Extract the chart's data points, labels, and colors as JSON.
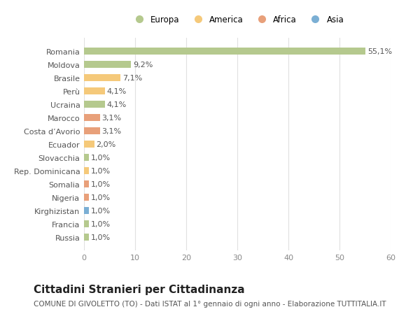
{
  "categories": [
    "Russia",
    "Francia",
    "Kirghizistan",
    "Nigeria",
    "Somalia",
    "Rep. Dominicana",
    "Slovacchia",
    "Ecuador",
    "Costa d’Avorio",
    "Marocco",
    "Ucraina",
    "Perù",
    "Brasile",
    "Moldova",
    "Romania"
  ],
  "values": [
    1.0,
    1.0,
    1.0,
    1.0,
    1.0,
    1.0,
    1.0,
    2.0,
    3.1,
    3.1,
    4.1,
    4.1,
    7.1,
    9.2,
    55.1
  ],
  "labels": [
    "1,0%",
    "1,0%",
    "1,0%",
    "1,0%",
    "1,0%",
    "1,0%",
    "1,0%",
    "2,0%",
    "3,1%",
    "3,1%",
    "4,1%",
    "4,1%",
    "7,1%",
    "9,2%",
    "55,1%"
  ],
  "colors": [
    "#b5c98e",
    "#b5c98e",
    "#7bafd4",
    "#e8a07a",
    "#e8a07a",
    "#f5c97a",
    "#b5c98e",
    "#f5c97a",
    "#e8a07a",
    "#e8a07a",
    "#b5c98e",
    "#f5c97a",
    "#f5c97a",
    "#b5c98e",
    "#b5c98e"
  ],
  "legend": {
    "Europa": "#b5c98e",
    "America": "#f5c97a",
    "Africa": "#e8a07a",
    "Asia": "#7bafd4"
  },
  "title": "Cittadini Stranieri per Cittadinanza",
  "subtitle": "COMUNE DI GIVOLETTO (TO) - Dati ISTAT al 1° gennaio di ogni anno - Elaborazione TUTTITALIA.IT",
  "xlim": [
    0,
    60
  ],
  "xticks": [
    0,
    10,
    20,
    30,
    40,
    50,
    60
  ],
  "background_color": "#ffffff",
  "grid_color": "#e0e0e0",
  "bar_height": 0.55,
  "label_fontsize": 8,
  "ytick_fontsize": 8,
  "xtick_fontsize": 8,
  "title_fontsize": 11,
  "subtitle_fontsize": 7.5
}
